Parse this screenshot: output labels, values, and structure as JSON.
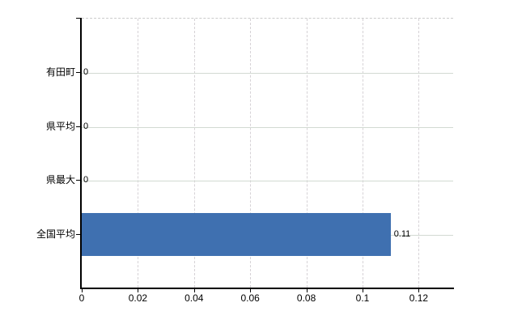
{
  "chart_data": {
    "type": "bar",
    "orientation": "horizontal",
    "categories": [
      "有田町",
      "県平均",
      "県最大",
      "全国平均"
    ],
    "values": [
      0,
      0,
      0,
      0.11
    ],
    "value_labels": [
      "0",
      "0",
      "0",
      "0.11"
    ],
    "x_ticks": [
      0,
      0.02,
      0.04,
      0.06,
      0.08,
      0.1,
      0.12
    ],
    "x_tick_labels": [
      "0",
      "0.02",
      "0.04",
      "0.06",
      "0.08",
      "0.1",
      "0.12"
    ],
    "xlim": [
      0,
      0.1323
    ],
    "grid": true,
    "legend": false,
    "bar_color": "#3f70b0",
    "axis_color": "#000000",
    "vertical_gridline_color": "#d6d2d6",
    "horizontal_gridline_color": "#d2dad2",
    "text_color": "#000000"
  }
}
